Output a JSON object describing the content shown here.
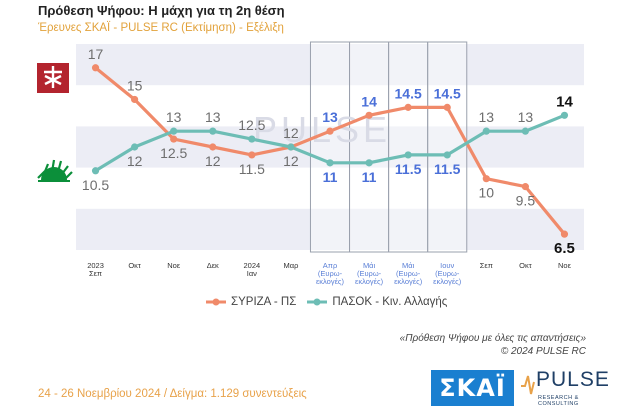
{
  "header": {
    "title": "Πρόθεση Ψήφου: Η μάχη για τη 2η θέση",
    "subtitle": "Έρευνες ΣΚΑΪ - PULSE RC   (Εκτίμηση) - Εξέλιξη"
  },
  "chart_data": {
    "type": "line",
    "categories": [
      [
        "2023",
        "Σεπ"
      ],
      [
        "Οκτ"
      ],
      [
        "Νοε"
      ],
      [
        "Δεκ"
      ],
      [
        "2024",
        "Ιαν"
      ],
      [
        "Μαρ"
      ],
      [
        "Απρ",
        "(Ευρω-",
        "εκλογές)"
      ],
      [
        "Μάι",
        "(Ευρω-",
        "εκλογές)"
      ],
      [
        "Μάι",
        "(Ευρω-",
        "εκλογές)"
      ],
      [
        "Ιουν",
        "(Ευρω-",
        "εκλογές)"
      ],
      [
        "Σεπ"
      ],
      [
        "Οκτ"
      ],
      [
        "Νοε"
      ]
    ],
    "series": [
      {
        "name": "ΣΥΡΙΖΑ - ΠΣ",
        "color": "#f08a6a",
        "values": [
          17,
          15,
          12.5,
          12,
          11.5,
          12,
          13,
          14,
          14.5,
          14.5,
          10,
          9.5,
          6.5
        ],
        "labels": [
          "17",
          "15",
          "12.5",
          "12",
          "11.5",
          "12",
          "13",
          "14",
          "14.5",
          "14.5",
          "10",
          "9.5",
          "6.5"
        ]
      },
      {
        "name": "ΠΑΣΟΚ - Κιν. Αλλαγής",
        "color": "#6dbdb5",
        "values": [
          10.5,
          12,
          13,
          13,
          12.5,
          12,
          11,
          11,
          11.5,
          11.5,
          13,
          13,
          14
        ],
        "labels": [
          "10.5",
          "12",
          "13",
          "13",
          "12.5",
          "12",
          "11",
          "11",
          "11.5",
          "11.5",
          "13",
          "13",
          "14"
        ]
      }
    ],
    "highlighted_categories": [
      6,
      7,
      8,
      9
    ],
    "ylim": [
      5.5,
      18.5
    ],
    "xlabel": "",
    "ylabel": "",
    "watermark": "PULSE",
    "grid": "horizontal bands",
    "legend_position": "bottom-center"
  },
  "legend": {
    "syriza": "ΣΥΡΙΖΑ - ΠΣ",
    "pasok": "ΠΑΣΟΚ - Κιν. Αλλαγής"
  },
  "footnote": {
    "line1": "«Πρόθεση Ψήφου με όλες τις απαντήσεις»",
    "line2": "©  2024  PULSE RC"
  },
  "footer": {
    "text": "24 - 26 Νοεμβρίου 2024  /  Δείγμα:  1.129 συνεντεύξεις"
  },
  "logos": {
    "skai": "ΣΚΑΪ",
    "pulse": "PULSE",
    "pulse_sub": "RESEARCH & CONSULTING"
  },
  "colors": {
    "syriza": "#f08a6a",
    "pasok": "#6dbdb5",
    "label_default": "#6e6e6e",
    "label_highlight": "#4a6fd8",
    "band": "#ecedf5",
    "accent": "#e2a23b"
  }
}
